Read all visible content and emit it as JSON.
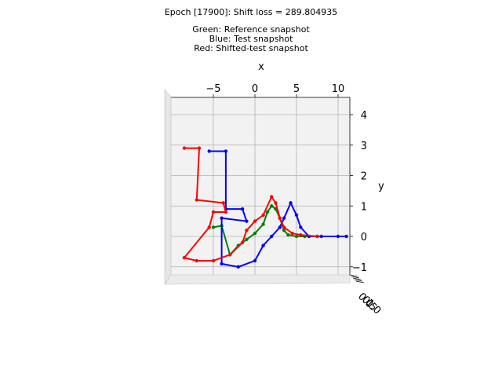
{
  "figure": {
    "title": "Epoch [17900]: Shift loss = 289.804935",
    "legend_lines": [
      "Green: Reference snapshot",
      "Blue: Test snapshot",
      "Red: Shifted-test snapshot"
    ]
  },
  "chart_data": {
    "type": "scatter",
    "projection": "3d",
    "xlabel": "x",
    "ylabel": "y",
    "zlabel": "",
    "xlim": [
      -10,
      11
    ],
    "ylim": [
      -1.4,
      4.5
    ],
    "x_ticks": [
      -5,
      0,
      5,
      10
    ],
    "x_tick_labels": [
      "−5",
      "0",
      "5",
      "10"
    ],
    "y_ticks": [
      -1,
      0,
      1,
      2,
      3,
      4
    ],
    "y_tick_labels": [
      "−1",
      "0",
      "1",
      "2",
      "3",
      "4"
    ],
    "z_tick_labels": [
      "0.0",
      "0.5",
      "1.0"
    ],
    "grid": true,
    "series": [
      {
        "name": "Reference snapshot",
        "color": "#008000",
        "points": [
          [
            -5,
            0.3
          ],
          [
            -4,
            0.35
          ],
          [
            -3,
            -0.6
          ],
          [
            -2,
            -0.3
          ],
          [
            -1,
            -0.1
          ],
          [
            0,
            0.1
          ],
          [
            1,
            0.4
          ],
          [
            1.5,
            0.8
          ],
          [
            2,
            1.0
          ],
          [
            2.5,
            0.9
          ],
          [
            3,
            0.6
          ],
          [
            3.5,
            0.2
          ],
          [
            4,
            0.05
          ],
          [
            5,
            0.0
          ],
          [
            6,
            0.0
          ],
          [
            7.5,
            0.0
          ]
        ]
      },
      {
        "name": "Test snapshot",
        "color": "#0000ff",
        "points": [
          [
            -5.5,
            2.8
          ],
          [
            -3.5,
            2.8
          ],
          [
            -3.5,
            0.9
          ],
          [
            -1.5,
            0.9
          ],
          [
            -1,
            0.5
          ],
          [
            -4,
            0.6
          ],
          [
            -4,
            -0.9
          ],
          [
            -2,
            -1.0
          ],
          [
            0,
            -0.8
          ],
          [
            1,
            -0.3
          ],
          [
            2,
            0.0
          ],
          [
            3,
            0.3
          ],
          [
            3.5,
            0.6
          ],
          [
            4.3,
            1.1
          ],
          [
            5,
            0.7
          ],
          [
            5.5,
            0.3
          ],
          [
            6.5,
            0.0
          ],
          [
            8,
            0.0
          ],
          [
            10,
            0.0
          ],
          [
            11,
            0.0
          ]
        ]
      },
      {
        "name": "Shifted-test snapshot",
        "color": "#ff0000",
        "points": [
          [
            -8.5,
            2.9
          ],
          [
            -6.7,
            2.9
          ],
          [
            -7,
            1.2
          ],
          [
            -3.8,
            1.1
          ],
          [
            -3.5,
            0.8
          ],
          [
            -5,
            0.8
          ],
          [
            -5.5,
            0.3
          ],
          [
            -8.5,
            -0.7
          ],
          [
            -7,
            -0.8
          ],
          [
            -5,
            -0.8
          ],
          [
            -3,
            -0.6
          ],
          [
            -1.5,
            -0.2
          ],
          [
            -1,
            0.2
          ],
          [
            0,
            0.5
          ],
          [
            1,
            0.7
          ],
          [
            2,
            1.3
          ],
          [
            2.5,
            1.1
          ],
          [
            3,
            0.6
          ],
          [
            3.5,
            0.3
          ],
          [
            4.5,
            0.1
          ],
          [
            5.5,
            0.05
          ],
          [
            7.5,
            0.0
          ]
        ]
      }
    ]
  }
}
